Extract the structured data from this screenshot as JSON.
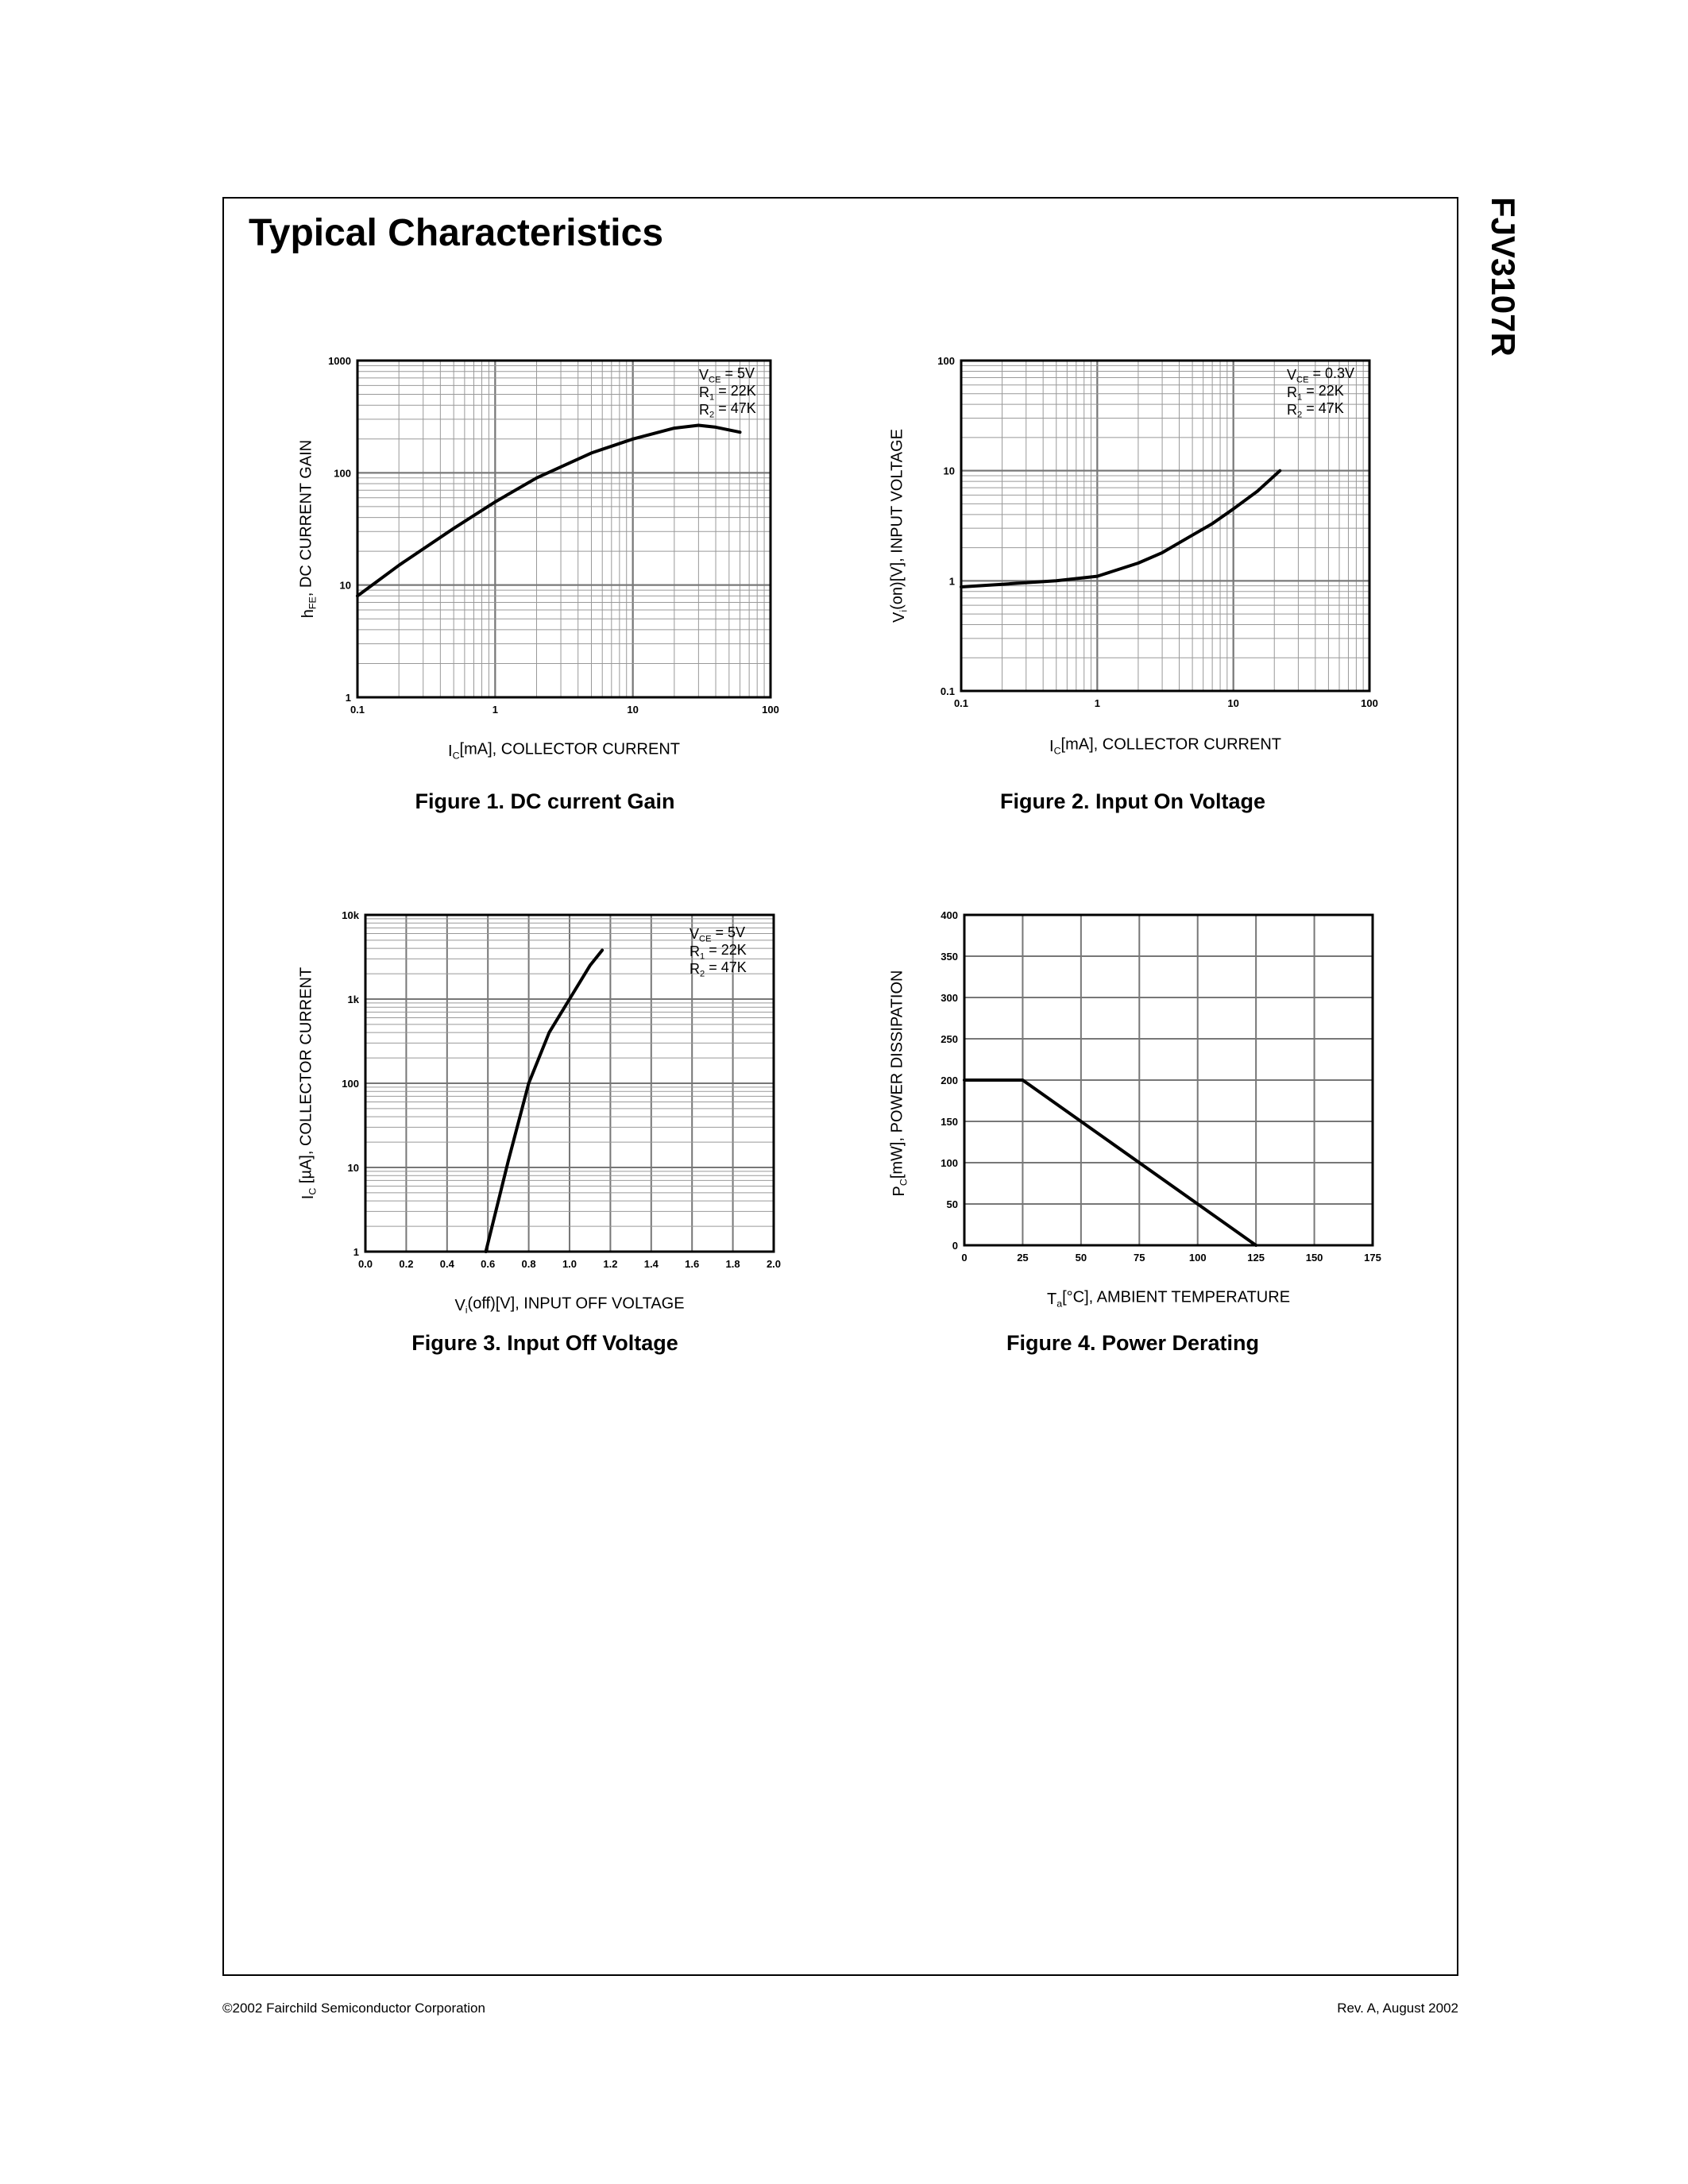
{
  "page": {
    "title": "Typical Characteristics",
    "part_number": "FJV3107R",
    "footer_left": "©2002 Fairchild Semiconductor Corporation",
    "footer_right": "Rev. A, August 2002"
  },
  "figures": [
    {
      "caption": "Figure 1. DC current Gain",
      "ylabel_main": "h",
      "ylabel_sub": "FE",
      "ylabel_rest": ", DC CURRENT GAIN",
      "xlabel_main": "I",
      "xlabel_sub": "C",
      "xlabel_rest": "[mA], COLLECTOR CURRENT",
      "conditions": [
        {
          "main": "V",
          "sub": "CE",
          "rest": " = 5V"
        },
        {
          "main": "R",
          "sub": "1",
          "rest": " = 22K"
        },
        {
          "main": "R",
          "sub": "2",
          "rest": " = 47K"
        }
      ],
      "xticks": [
        "0.1",
        "1",
        "10",
        "100"
      ],
      "yticks": [
        "1",
        "10",
        "100",
        "1000"
      ]
    },
    {
      "caption": "Figure 2. Input On Voltage",
      "ylabel_main": "V",
      "ylabel_sub": "i",
      "ylabel_rest": "(on)[V], INPUT VOLTAGE",
      "xlabel_main": "I",
      "xlabel_sub": "C",
      "xlabel_rest": "[mA], COLLECTOR CURRENT",
      "conditions": [
        {
          "main": "V",
          "sub": "CE",
          "rest": " = 0.3V"
        },
        {
          "main": "R",
          "sub": "1",
          "rest": " = 22K"
        },
        {
          "main": "R",
          "sub": "2",
          "rest": " = 47K"
        }
      ],
      "xticks": [
        "0.1",
        "1",
        "10",
        "100"
      ],
      "yticks": [
        "0.1",
        "1",
        "10",
        "100"
      ]
    },
    {
      "caption": "Figure 3. Input Off Voltage",
      "ylabel_main": "I",
      "ylabel_sub": "C",
      "ylabel_rest": " [µA], COLLECTOR CURRENT",
      "xlabel_main": "V",
      "xlabel_sub": "i",
      "xlabel_rest": "(off)[V], INPUT OFF VOLTAGE",
      "conditions": [
        {
          "main": "V",
          "sub": "CE",
          "rest": " = 5V"
        },
        {
          "main": "R",
          "sub": "1",
          "rest": " = 22K"
        },
        {
          "main": "R",
          "sub": "2",
          "rest": " = 47K"
        }
      ],
      "xticks": [
        "0.0",
        "0.2",
        "0.4",
        "0.6",
        "0.8",
        "1.0",
        "1.2",
        "1.4",
        "1.6",
        "1.8",
        "2.0"
      ],
      "yticks": [
        "1",
        "10",
        "100",
        "1k",
        "10k"
      ]
    },
    {
      "caption": "Figure 4. Power Derating",
      "ylabel_main": "P",
      "ylabel_sub": "C",
      "ylabel_rest": "[mW], POWER DISSIPATION",
      "xlabel_main": "T",
      "xlabel_sub": "a",
      "xlabel_rest": "[°C], AMBIENT TEMPERATURE",
      "conditions": [],
      "xticks": [
        "0",
        "25",
        "50",
        "75",
        "100",
        "125",
        "150",
        "175"
      ],
      "yticks": [
        "0",
        "50",
        "100",
        "150",
        "200",
        "250",
        "300",
        "350",
        "400"
      ]
    }
  ],
  "chart_data": [
    {
      "type": "line",
      "x_scale": "log",
      "y_scale": "log",
      "xlim": [
        0.1,
        100
      ],
      "ylim": [
        1,
        1000
      ],
      "grid": true,
      "series": [
        {
          "x": [
            0.1,
            0.2,
            0.5,
            1,
            2,
            5,
            10,
            20,
            30,
            40,
            60
          ],
          "y": [
            8,
            15,
            32,
            55,
            90,
            150,
            200,
            250,
            265,
            255,
            230
          ]
        }
      ]
    },
    {
      "type": "line",
      "x_scale": "log",
      "y_scale": "log",
      "xlim": [
        0.1,
        100
      ],
      "ylim": [
        0.1,
        100
      ],
      "grid": true,
      "series": [
        {
          "x": [
            0.1,
            0.2,
            0.5,
            1,
            2,
            3,
            5,
            7,
            10,
            15,
            22
          ],
          "y": [
            0.88,
            0.93,
            1.0,
            1.1,
            1.45,
            1.8,
            2.6,
            3.3,
            4.5,
            6.5,
            10
          ]
        }
      ]
    },
    {
      "type": "line",
      "x_scale": "linear",
      "y_scale": "log",
      "xlim": [
        0,
        2.0
      ],
      "ylim": [
        1,
        10000
      ],
      "grid": true,
      "series": [
        {
          "x": [
            0.59,
            0.7,
            0.8,
            0.9,
            1.0,
            1.1,
            1.16
          ],
          "y": [
            1,
            12,
            100,
            400,
            1000,
            2500,
            3800
          ]
        }
      ]
    },
    {
      "type": "line",
      "x_scale": "linear",
      "y_scale": "linear",
      "xlim": [
        0,
        175
      ],
      "ylim": [
        0,
        400
      ],
      "grid": true,
      "series": [
        {
          "x": [
            0,
            25,
            125
          ],
          "y": [
            200,
            200,
            0
          ]
        }
      ]
    }
  ]
}
